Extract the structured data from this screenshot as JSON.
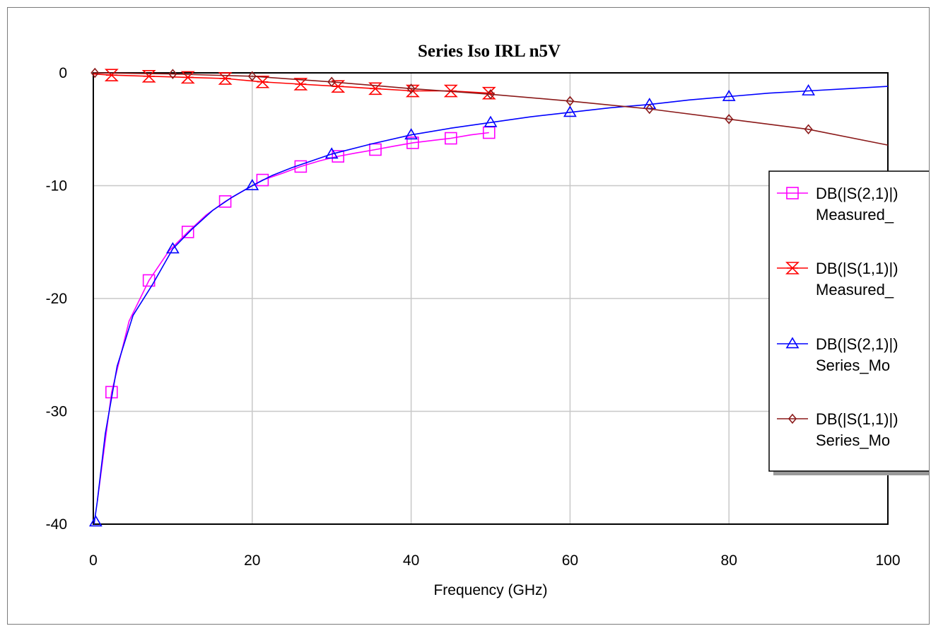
{
  "chart_data": {
    "type": "line",
    "title": "Series Iso IRL n5V",
    "xlabel": "Frequency (GHz)",
    "ylabel": "",
    "xlim": [
      0,
      100
    ],
    "ylim": [
      -40,
      0
    ],
    "xticks": [
      0,
      20,
      40,
      60,
      80,
      100
    ],
    "yticks": [
      0,
      -10,
      -20,
      -30,
      -40
    ],
    "grid": true,
    "legend_position": "right",
    "series": [
      {
        "name": "DB(|S(2,1)|)",
        "name_line2": "Measured_",
        "color": "#ff00ff",
        "marker": "square",
        "x": [
          0.5,
          2.3,
          4.5,
          7.0,
          9.5,
          11.9,
          14.2,
          16.6,
          19.0,
          21.3,
          23.8,
          26.1,
          28.5,
          30.8,
          33.1,
          35.5,
          37.8,
          40.2,
          42.6,
          45.0,
          47.5,
          49.8
        ],
        "y": [
          -38.0,
          -28.3,
          -22.0,
          -18.4,
          -15.8,
          -14.1,
          -12.6,
          -11.4,
          -10.4,
          -9.5,
          -8.9,
          -8.3,
          -7.8,
          -7.4,
          -7.1,
          -6.8,
          -6.5,
          -6.2,
          -6.0,
          -5.8,
          -5.5,
          -5.3
        ],
        "marker_x": [
          2.3,
          7.0,
          11.9,
          16.6,
          21.3,
          26.1,
          30.8,
          35.5,
          40.2,
          45.0,
          49.8
        ],
        "marker_y": [
          -28.3,
          -18.4,
          -14.1,
          -11.4,
          -9.5,
          -8.3,
          -7.4,
          -6.8,
          -6.2,
          -5.8,
          -5.3
        ]
      },
      {
        "name": "DB(|S(1,1)|)",
        "name_line2": "Measured_",
        "color": "#ff0000",
        "marker": "hourglass",
        "x": [
          0,
          2.3,
          7.0,
          11.9,
          16.6,
          21.3,
          26.1,
          30.8,
          35.5,
          40.2,
          45.0,
          49.8
        ],
        "y": [
          -0.1,
          -0.2,
          -0.3,
          -0.4,
          -0.5,
          -0.8,
          -1.0,
          -1.2,
          -1.4,
          -1.6,
          -1.6,
          -1.8
        ],
        "marker_x": [
          2.3,
          7.0,
          11.9,
          16.6,
          21.3,
          26.1,
          30.8,
          35.5,
          40.2,
          45.0,
          49.8
        ],
        "marker_y": [
          -0.2,
          -0.3,
          -0.4,
          -0.5,
          -0.8,
          -1.0,
          -1.2,
          -1.4,
          -1.6,
          -1.6,
          -1.8
        ]
      },
      {
        "name": "DB(|S(2,1)|)",
        "name_line2": "Series_Mo",
        "color": "#0000ff",
        "marker": "triangle",
        "x": [
          0.1,
          0.5,
          1.5,
          3,
          5,
          7.5,
          10,
          12.5,
          15,
          17.5,
          20,
          22.5,
          25,
          27.5,
          30,
          35,
          40,
          45,
          50,
          55,
          60,
          65,
          70,
          75,
          80,
          85,
          90,
          95,
          100
        ],
        "y": [
          -40,
          -38,
          -32,
          -26,
          -21.5,
          -18.7,
          -15.6,
          -13.8,
          -12.2,
          -11.0,
          -10.0,
          -9.1,
          -8.4,
          -7.8,
          -7.2,
          -6.3,
          -5.5,
          -4.9,
          -4.4,
          -3.9,
          -3.5,
          -3.1,
          -2.8,
          -2.4,
          -2.1,
          -1.8,
          -1.6,
          -1.4,
          -1.2
        ],
        "marker_x": [
          0.3,
          10,
          20,
          30,
          40,
          50,
          60,
          70,
          80,
          90
        ],
        "marker_y": [
          -39.8,
          -15.6,
          -10.0,
          -7.2,
          -5.5,
          -4.4,
          -3.5,
          -2.8,
          -2.1,
          -1.6
        ]
      },
      {
        "name": "DB(|S(1,1)|)",
        "name_line2": "Series_Mo",
        "color": "#8b1a1a",
        "marker": "diamond",
        "x": [
          0,
          10,
          20,
          30,
          40,
          50,
          60,
          70,
          80,
          90,
          100
        ],
        "y": [
          0,
          -0.1,
          -0.3,
          -0.8,
          -1.4,
          -1.9,
          -2.5,
          -3.2,
          -4.1,
          -5.0,
          -6.4
        ],
        "marker_x": [
          0.2,
          10,
          20,
          30,
          40,
          50,
          60,
          70,
          80,
          90
        ],
        "marker_y": [
          0,
          -0.1,
          -0.3,
          -0.8,
          -1.4,
          -1.9,
          -2.5,
          -3.2,
          -4.1,
          -5.0
        ]
      }
    ]
  }
}
